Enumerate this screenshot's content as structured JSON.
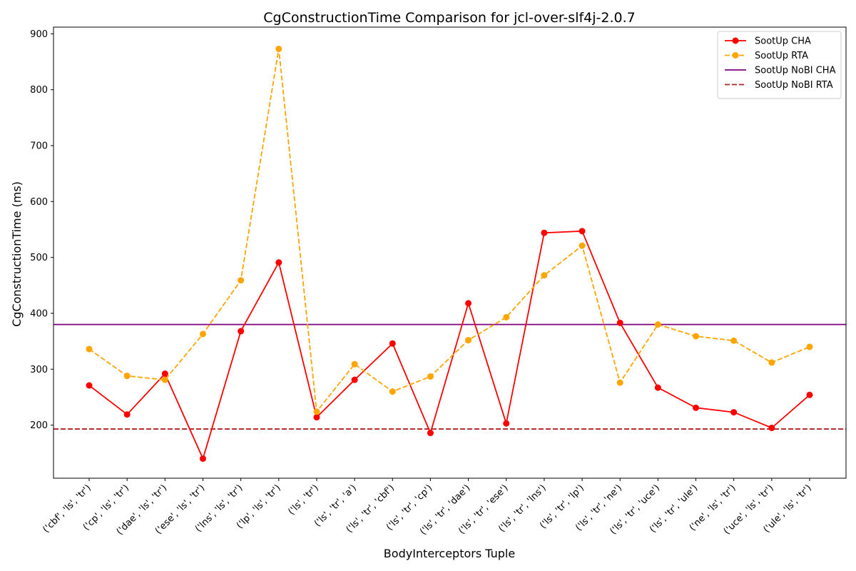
{
  "chart_data": {
    "type": "line",
    "title": "CgConstructionTime Comparison for jcl-over-slf4j-2.0.7",
    "xlabel": "BodyInterceptors Tuple",
    "ylabel": "CgConstructionTime (ms)",
    "ylim": [
      105,
      912
    ],
    "yticks": [
      200,
      300,
      400,
      500,
      600,
      700,
      800,
      900
    ],
    "categories": [
      "('cbf', 'ls', 'tr')",
      "('cp', 'ls', 'tr')",
      "('dae', 'ls', 'tr')",
      "('ese', 'ls', 'tr')",
      "('lns', 'ls', 'tr')",
      "('lp', 'ls', 'tr')",
      "('ls', 'tr')",
      "('ls', 'tr', 'a')",
      "('ls', 'tr', 'cbf')",
      "('ls', 'tr', 'cp')",
      "('ls', 'tr', 'dae')",
      "('ls', 'tr', 'ese')",
      "('ls', 'tr', 'lns')",
      "('ls', 'tr', 'lp')",
      "('ls', 'tr', 'ne')",
      "('ls', 'tr', 'uce')",
      "('ls', 'tr', 'ule')",
      "('ne', 'ls', 'tr')",
      "('uce', 'ls', 'tr')",
      "('ule', 'ls', 'tr')"
    ],
    "series": [
      {
        "name": "SootUp CHA",
        "color": "#ff0000",
        "style": "solid",
        "marker": "circle",
        "values": [
          271,
          219,
          292,
          140,
          368,
          491,
          214,
          281,
          346,
          186,
          418,
          203,
          544,
          547,
          383,
          267,
          231,
          223,
          195,
          254
        ]
      },
      {
        "name": "SootUp RTA",
        "color": "#ffa500",
        "style": "dashed",
        "marker": "circle",
        "values": [
          336,
          288,
          281,
          363,
          459,
          873,
          224,
          309,
          260,
          287,
          352,
          393,
          468,
          521,
          276,
          380,
          359,
          351,
          312,
          340
        ]
      }
    ],
    "hlines": [
      {
        "name": "SootUp NoBI CHA",
        "color": "#800080",
        "style": "solid",
        "value": 380
      },
      {
        "name": "SootUp NoBI RTA",
        "color": "#b22222",
        "style": "dashed",
        "value": 193
      }
    ],
    "legend_position": "top-right",
    "grid": false
  }
}
